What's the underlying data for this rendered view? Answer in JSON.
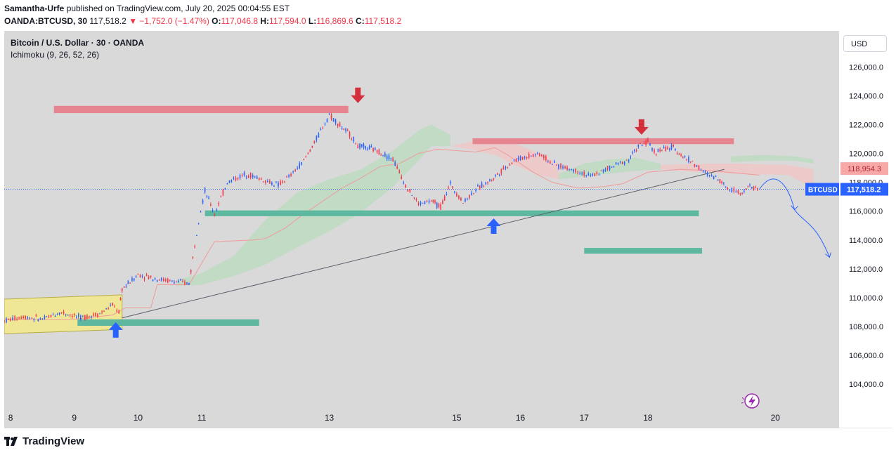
{
  "header": {
    "author": "Samantha-Urfe",
    "published_text": "published on TradingView.com, July 20, 2025 00:04:55 EST",
    "symbol": "OANDA:BTCUSD, 30",
    "last": "117,518.2",
    "change": "▼ −1,752.0 (−1.47%)",
    "o_label": "O:",
    "o_value": "117,046.8",
    "h_label": "H:",
    "h_value": "117,594.0",
    "l_label": "L:",
    "l_value": "116,869.6",
    "c_label": "C:",
    "c_value": "117,518.2"
  },
  "legend": {
    "title": "Bitcoin / U.S. Dollar · 30 · OANDA",
    "indicator": "Ichimoku (9, 26, 52, 26)"
  },
  "currency_button": "USD",
  "footer": {
    "brand": "TradingView"
  },
  "chart_data": {
    "type": "line",
    "title": "Bitcoin / U.S. Dollar · 30 · OANDA",
    "ylim": [
      102500,
      128500
    ],
    "y_ticks": [
      104000,
      106000,
      108000,
      110000,
      112000,
      114000,
      116000,
      118000,
      120000,
      122000,
      124000,
      126000
    ],
    "y_tick_labels": [
      "104,000.0",
      "106,000.0",
      "108,000.0",
      "110,000.0",
      "112,000.0",
      "114,000.0",
      "116,000.0",
      "118,000.0",
      "120,000.0",
      "122,000.0",
      "124,000.0",
      "126,000.0"
    ],
    "x_range": [
      7.9,
      21.0
    ],
    "x_ticks": [
      8,
      9,
      10,
      11,
      13,
      15,
      16,
      17,
      18,
      20
    ],
    "x_tick_labels": [
      "8",
      "9",
      "10",
      "11",
      "13",
      "15",
      "16",
      "17",
      "18",
      "20"
    ],
    "price_labels": [
      {
        "name": "cloud-price-label",
        "text": "118,954.3",
        "value": 118954.3,
        "color": "#f7a9a9",
        "text_color": "#b22833"
      },
      {
        "name": "btcusd-price-label",
        "text": "117,518.2",
        "value": 117518.2,
        "color": "#2962ff",
        "text_color": "#ffffff"
      }
    ],
    "symbol_badge": "BTCUSD",
    "price_series": {
      "name": "BTCUSD",
      "x": [
        7.9,
        8.2,
        8.5,
        8.8,
        9.1,
        9.4,
        9.6,
        9.7,
        9.75,
        10.0,
        10.3,
        10.6,
        10.8,
        10.95,
        11.05,
        11.2,
        11.4,
        11.7,
        12.0,
        12.2,
        12.4,
        12.6,
        12.8,
        13.0,
        13.2,
        13.35,
        13.45,
        13.6,
        13.75,
        14.0,
        14.2,
        14.4,
        14.6,
        14.75,
        14.9,
        15.1,
        15.3,
        15.55,
        15.7,
        15.9,
        16.1,
        16.3,
        16.5,
        16.7,
        16.9,
        17.1,
        17.3,
        17.5,
        17.7,
        17.85,
        18.0,
        18.1,
        18.25,
        18.4,
        18.55,
        18.7,
        18.9,
        19.1,
        19.25,
        19.45,
        19.6,
        19.75
      ],
      "values": [
        108400,
        108700,
        108500,
        109000,
        108600,
        108900,
        109500,
        109000,
        110600,
        111600,
        111300,
        111100,
        111000,
        115400,
        117400,
        115800,
        118000,
        118600,
        118100,
        117800,
        118500,
        119500,
        121000,
        122700,
        121800,
        121200,
        120500,
        120400,
        120200,
        119600,
        117800,
        116500,
        116700,
        116300,
        117900,
        116600,
        117500,
        118200,
        118800,
        119500,
        119800,
        120000,
        119300,
        119000,
        118800,
        118400,
        118800,
        119200,
        119600,
        120500,
        120800,
        120100,
        120300,
        120400,
        119800,
        119400,
        118600,
        118300,
        117600,
        117300,
        117700,
        117518
      ]
    },
    "projection": {
      "name": "projected-path",
      "x": [
        19.75,
        20.3,
        20.85
      ],
      "values": [
        117518,
        116100,
        112800
      ]
    },
    "trendline": {
      "x1": 9.75,
      "y1": 108600,
      "x2": 19.2,
      "y2": 118900
    },
    "zones": [
      {
        "name": "resistance-zone-123k",
        "x1": 8.68,
        "x2": 13.3,
        "y1": 122800,
        "y2": 123300,
        "color": "#e68590"
      },
      {
        "name": "resistance-zone-121k",
        "x1": 15.25,
        "x2": 19.35,
        "y1": 120650,
        "y2": 121050,
        "color": "#e68590"
      },
      {
        "name": "support-zone-115-8k",
        "x1": 11.05,
        "x2": 18.8,
        "y1": 115650,
        "y2": 116050,
        "color": "#5db89f"
      },
      {
        "name": "support-zone-113k",
        "x1": 17.0,
        "x2": 18.85,
        "y1": 113050,
        "y2": 113450,
        "color": "#5db89f"
      },
      {
        "name": "support-zone-108-5k",
        "x1": 9.05,
        "x2": 11.9,
        "y1": 108050,
        "y2": 108500,
        "color": "#5db89f"
      }
    ],
    "consolidation_box": {
      "name": "consolidation-box",
      "points": [
        [
          7.9,
          109900
        ],
        [
          9.75,
          110200
        ],
        [
          9.75,
          107800
        ],
        [
          7.9,
          107500
        ]
      ],
      "color": "#f3e98a"
    },
    "arrows": [
      {
        "name": "down-arrow-13",
        "x": 13.45,
        "value": 123500,
        "dir": "down",
        "color": "#d32f3c"
      },
      {
        "name": "down-arrow-18",
        "x": 17.9,
        "value": 121300,
        "dir": "down",
        "color": "#d32f3c"
      },
      {
        "name": "up-arrow-15",
        "x": 15.58,
        "value": 115500,
        "dir": "up",
        "color": "#2962ff"
      },
      {
        "name": "up-arrow-9",
        "x": 9.65,
        "value": 108300,
        "dir": "up",
        "color": "#2962ff"
      }
    ],
    "cloud_segments": [
      {
        "name": "green-cloud-1",
        "color": "#b9dbbe",
        "x": [
          10.6,
          11.0,
          11.5,
          12.0,
          12.5,
          13.0,
          13.5,
          14.0,
          14.4,
          14.6,
          14.9
        ],
        "upper": [
          111200,
          111700,
          112900,
          115400,
          117300,
          118200,
          118900,
          120200,
          121600,
          122000,
          121300
        ],
        "lower": [
          110800,
          110900,
          111500,
          112300,
          113500,
          114600,
          115900,
          117700,
          119500,
          120500,
          120500
        ]
      },
      {
        "name": "red-cloud-1",
        "color": "#f2c4c4",
        "x": [
          14.9,
          15.2,
          15.6,
          15.9,
          16.3,
          16.6
        ],
        "upper": [
          120500,
          120800,
          121000,
          120700,
          120000,
          119300
        ],
        "lower": [
          120500,
          120300,
          119900,
          119200,
          118500,
          118200
        ]
      },
      {
        "name": "green-cloud-2",
        "color": "#b9dbbe",
        "x": [
          16.6,
          17.0,
          17.4,
          17.8,
          18.2
        ],
        "upper": [
          118600,
          119300,
          119600,
          119700,
          119300
        ],
        "lower": [
          118200,
          118400,
          118600,
          118800,
          118900
        ]
      },
      {
        "name": "red-cloud-2",
        "color": "#f2c4c4",
        "x": [
          18.2,
          18.8,
          19.4,
          20.2,
          20.6
        ],
        "upper": [
          119200,
          119300,
          119300,
          119200,
          118900
        ],
        "lower": [
          118900,
          118700,
          118600,
          118500,
          117600
        ]
      },
      {
        "name": "green-cloud-3",
        "color": "#b9dbbe",
        "x": [
          19.3,
          19.8,
          20.3,
          20.6
        ],
        "upper": [
          119800,
          119900,
          119800,
          119600
        ],
        "lower": [
          119400,
          119500,
          119500,
          119300
        ]
      }
    ],
    "kijun": {
      "name": "kijun-line",
      "color": "#f09a9a",
      "x": [
        7.9,
        9.0,
        9.4,
        9.6,
        9.8,
        10.2,
        10.3,
        10.8,
        11.2,
        11.3,
        11.8,
        12.0,
        12.3,
        12.6,
        13.2,
        13.5,
        13.8,
        14.1,
        14.4,
        14.7,
        15.3,
        15.6,
        15.8,
        16.2,
        16.5,
        16.9,
        17.3,
        17.6,
        18.0,
        18.5,
        19.0,
        19.5,
        19.75
      ],
      "values": [
        108500,
        108500,
        108700,
        108800,
        109300,
        109300,
        110900,
        110900,
        113900,
        113900,
        114000,
        114100,
        114800,
        115800,
        117600,
        118300,
        119100,
        119300,
        120000,
        120300,
        120100,
        120400,
        119900,
        118700,
        118000,
        117600,
        117700,
        117900,
        118700,
        118900,
        118800,
        118600,
        118500
      ]
    }
  }
}
